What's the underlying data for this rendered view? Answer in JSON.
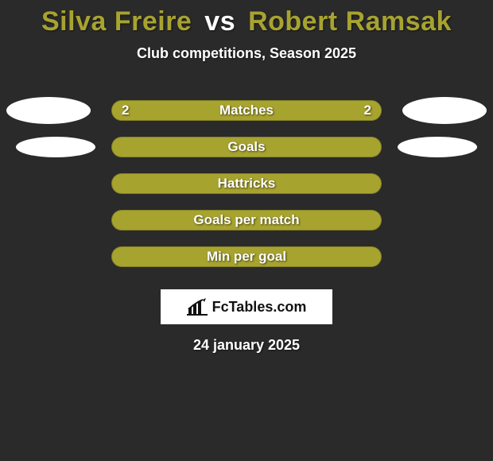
{
  "title": {
    "player1": "Silva Freire",
    "vs": "vs",
    "player2": "Robert Ramsak",
    "fontsize": 34,
    "p1_color": "#a7a32f",
    "vs_color": "#ffffff",
    "p2_color": "#a7a32f"
  },
  "subtitle": {
    "text": "Club competitions, Season 2025",
    "fontsize": 18
  },
  "rows": [
    {
      "label": "Matches",
      "left_value": "2",
      "right_value": "2",
      "bg_color": "#a7a32f",
      "fill_left_pct": 50,
      "fill_right_pct": 50,
      "fill_left_color": "#a7a32f",
      "fill_right_color": "#a7a32f",
      "label_fontsize": 17,
      "value_fontsize": 17,
      "avatar": "big"
    },
    {
      "label": "Goals",
      "left_value": "",
      "right_value": "",
      "bg_color": "#a7a32f",
      "fill_left_pct": 0,
      "fill_right_pct": 0,
      "fill_left_color": "#a7a32f",
      "fill_right_color": "#a7a32f",
      "label_fontsize": 17,
      "value_fontsize": 17,
      "avatar": "small"
    },
    {
      "label": "Hattricks",
      "left_value": "",
      "right_value": "",
      "bg_color": "#a7a32f",
      "fill_left_pct": 0,
      "fill_right_pct": 0,
      "fill_left_color": "#a7a32f",
      "fill_right_color": "#a7a32f",
      "label_fontsize": 17,
      "value_fontsize": 17,
      "avatar": "none"
    },
    {
      "label": "Goals per match",
      "left_value": "",
      "right_value": "",
      "bg_color": "#a7a32f",
      "fill_left_pct": 0,
      "fill_right_pct": 0,
      "fill_left_color": "#a7a32f",
      "fill_right_color": "#a7a32f",
      "label_fontsize": 17,
      "value_fontsize": 17,
      "avatar": "none"
    },
    {
      "label": "Min per goal",
      "left_value": "",
      "right_value": "",
      "bg_color": "#a7a32f",
      "fill_left_pct": 0,
      "fill_right_pct": 0,
      "fill_left_color": "#a7a32f",
      "fill_right_color": "#a7a32f",
      "label_fontsize": 17,
      "value_fontsize": 17,
      "avatar": "none"
    }
  ],
  "logo": {
    "text": "FcTables.com",
    "icon_color": "#111111",
    "box_bg": "#ffffff"
  },
  "date": {
    "text": "24 january 2025",
    "fontsize": 18
  },
  "theme": {
    "page_bg": "#2a2a2a",
    "text_color": "#ffffff"
  }
}
